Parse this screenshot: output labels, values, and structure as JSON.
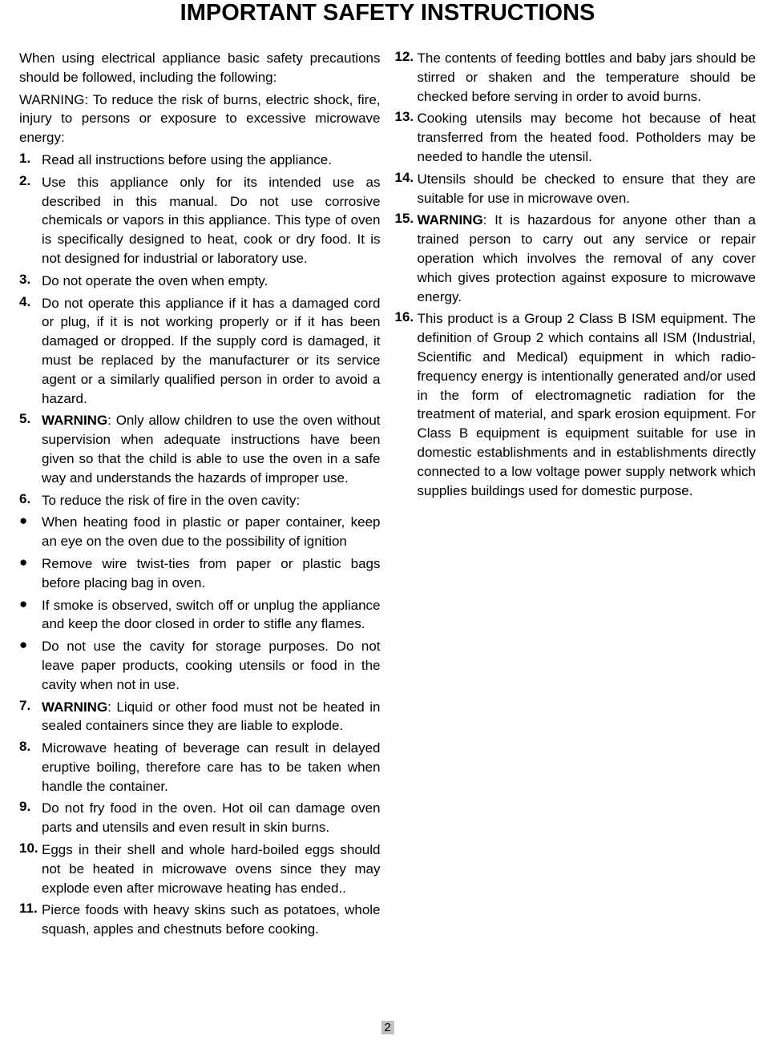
{
  "page_number": "2",
  "title": "IMPORTANT SAFETY INSTRUCTIONS",
  "intro_text": "When using electrical appliance basic safety precautions should be followed, including the following:",
  "warning_intro": "WARNING: To reduce the risk of burns, electric shock, fire, injury to persons or exposure to excessive microwave energy:",
  "items": [
    {
      "num": "1.",
      "bold_prefix": "",
      "text": "Read all instructions before using the appliance."
    },
    {
      "num": "2.",
      "bold_prefix": "",
      "text": "Use this appliance only for its intended use as described in this manual. Do not use corrosive chemicals or vapors in this appliance. This type of oven is specifically designed to heat, cook or dry food. It is not designed for industrial or laboratory use."
    },
    {
      "num": "3.",
      "bold_prefix": "",
      "text": "Do not operate the oven when empty."
    },
    {
      "num": "4.",
      "bold_prefix": "",
      "text": "Do not operate this appliance if it has a damaged cord or plug, if it is not working properly or if it has been damaged or dropped. If the supply cord is damaged, it must be replaced by the manufacturer or its service agent or a similarly qualified person in order to avoid a hazard."
    },
    {
      "num": "5.",
      "bold_prefix": "WARNING",
      "text": ": Only allow children to use the oven without supervision when adequate instructions have been given so that the child is able to use the oven in a safe way and understands the hazards of improper use."
    },
    {
      "num": "6.",
      "bold_prefix": "",
      "text": "To reduce the risk of fire in the oven cavity:"
    }
  ],
  "bullets": [
    {
      "text": "When heating food in plastic or paper container, keep an eye on the oven due to the possibility of ignition"
    },
    {
      "text": "Remove wire twist-ties from paper or plastic bags before placing bag in oven."
    },
    {
      "text": "If smoke is observed, switch off or unplug the appliance and keep the door closed in order to stifle any flames."
    },
    {
      "text": "Do not use the cavity for storage purposes. Do not leave paper products, cooking utensils or food in the cavity when not in use."
    }
  ],
  "items2": [
    {
      "num": "7.",
      "bold_prefix": "WARNING",
      "text": ": Liquid or other food must not be heated in sealed containers since they are liable to explode."
    },
    {
      "num": "8.",
      "bold_prefix": "",
      "text": "Microwave heating of beverage can result in delayed eruptive boiling, therefore care has to be taken when handle the container."
    },
    {
      "num": "9.",
      "bold_prefix": "",
      "text": "Do not fry food in the oven. Hot oil can damage oven parts and utensils and even result in skin burns."
    },
    {
      "num": "10.",
      "bold_prefix": "",
      "text": "Eggs in their shell and whole hard-boiled eggs should not be heated in microwave ovens since they may explode even after microwave heating has ended.."
    },
    {
      "num": "11.",
      "bold_prefix": "",
      "text": "Pierce foods with heavy skins such as potatoes, whole squash, apples and chestnuts before cooking."
    },
    {
      "num": "12.",
      "bold_prefix": "",
      "text": "The contents of feeding bottles and baby jars should be stirred or shaken and the temperature should be checked before serving in order to avoid burns."
    },
    {
      "num": "13.",
      "bold_prefix": "",
      "text": "Cooking utensils may become hot because of heat transferred from the heated food. Potholders may be needed to handle the utensil."
    },
    {
      "num": "14.",
      "bold_prefix": "",
      "text": "Utensils should be checked to ensure that they are suitable for use in microwave oven."
    },
    {
      "num": "15.",
      "bold_prefix": "WARNING",
      "text": ": It is hazardous for anyone other than a trained person to carry out any service or repair operation which involves the removal of any cover which gives protection against exposure to microwave energy."
    },
    {
      "num": "16.",
      "bold_prefix": "",
      "text": "This product is a Group 2 Class B ISM equipment. The definition of Group 2 which contains all ISM (Industrial, Scientific and Medical) equipment in which radio-frequency energy is intentionally generated and/or used in the form of electromagnetic radiation for the treatment of material, and spark erosion equipment.  For Class B equipment is equipment suitable for use in domestic establishments and in establishments directly connected to a low voltage power supply network which supplies buildings used for domestic purpose."
    }
  ],
  "bullet_char": "●",
  "styling": {
    "title_fontsize": 29,
    "body_fontsize": 17,
    "background_color": "#ffffff",
    "text_color": "#000000",
    "page_num_bg": "#c0c0c0",
    "font_family": "Arial, Helvetica, sans-serif"
  }
}
